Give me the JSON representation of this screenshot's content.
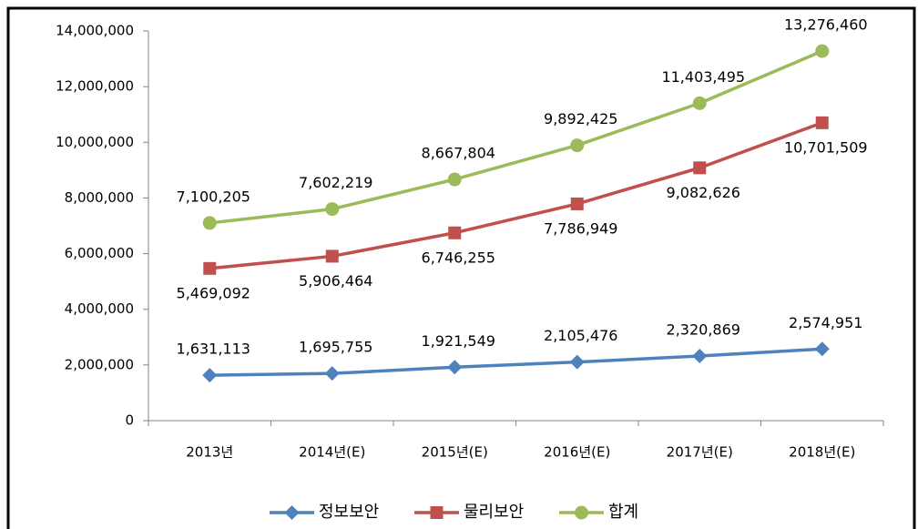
{
  "chart_data": {
    "type": "line",
    "categories": [
      "2013년",
      "2014년(E)",
      "2015년(E)",
      "2016년(E)",
      "2017년(E)",
      "2018년(E)"
    ],
    "series": [
      {
        "name": "정보보안",
        "color": "#4f81bd",
        "marker": "diamond",
        "values": [
          1631113,
          1695755,
          1921549,
          2105476,
          2320869,
          2574951
        ],
        "value_labels": [
          "1,631,113",
          "1,695,755",
          "1,921,549",
          "2,105,476",
          "2,320,869",
          "2,574,951"
        ]
      },
      {
        "name": "물리보안",
        "color": "#c0504d",
        "marker": "square",
        "values": [
          5469092,
          5906464,
          6746255,
          7786949,
          9082626,
          10701509
        ],
        "value_labels": [
          "5,469,092",
          "5,906,464",
          "6,746,255",
          "7,786,949",
          "9,082,626",
          "10,701,509"
        ]
      },
      {
        "name": "합계",
        "color": "#9bbb59",
        "marker": "circle",
        "values": [
          7100205,
          7602219,
          8667804,
          9892425,
          11403495,
          13276460
        ],
        "value_labels": [
          "7,100,205",
          "7,602,219",
          "8,667,804",
          "9,892,425",
          "11,403,495",
          "13,276,460"
        ]
      }
    ],
    "ylim": [
      0,
      14000000
    ],
    "yticks": [
      0,
      {
        "value": 2000000,
        "label": "2,000,000"
      },
      {
        "value": 4000000,
        "label": "4,000,000"
      },
      {
        "value": 6000000,
        "label": "6,000,000"
      },
      {
        "value": 8000000,
        "label": "8,000,000"
      },
      {
        "value": 10000000,
        "label": "10,000,000"
      },
      {
        "value": 12000000,
        "label": "12,000,000"
      },
      {
        "value": 14000000,
        "label": "14,000,000"
      }
    ],
    "grid": false,
    "legend": "bottom"
  }
}
